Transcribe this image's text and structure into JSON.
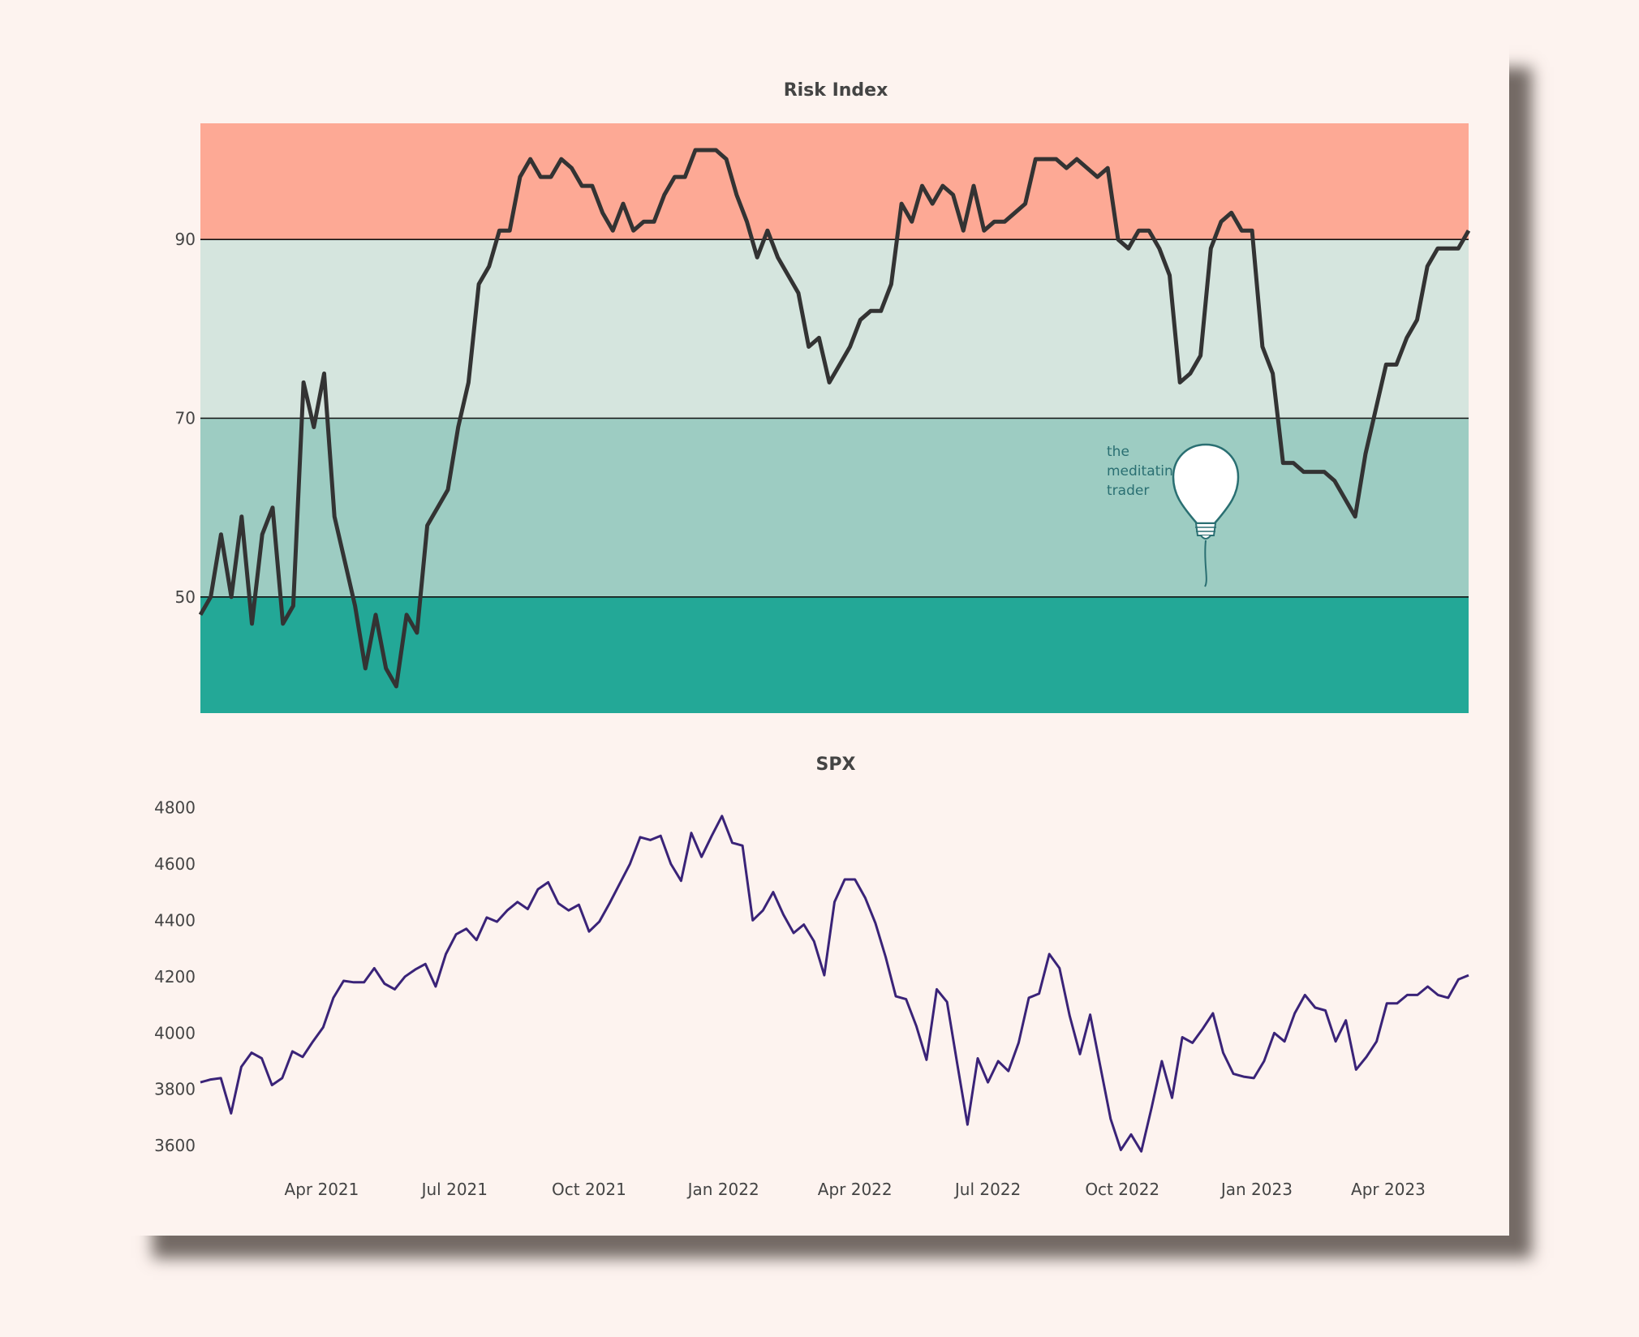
{
  "chart_data": [
    {
      "type": "line",
      "title": "Risk Index",
      "xlabel": "",
      "ylabel": "",
      "ylim": [
        37,
        103
      ],
      "yticks": [
        50,
        70,
        90
      ],
      "grid": false,
      "bands": [
        {
          "from": 90,
          "to": 103,
          "color": "#fda995"
        },
        {
          "from": 70,
          "to": 90,
          "color": "#d5e5de"
        },
        {
          "from": 50,
          "to": 70,
          "color": "#9dccc2"
        },
        {
          "from": 37,
          "to": 50,
          "color": "#23a897"
        }
      ],
      "line_color": "#333333",
      "series": [
        {
          "values": [
            48,
            50,
            57,
            50,
            59,
            47,
            57,
            60,
            47,
            49,
            74,
            69,
            75,
            59,
            54,
            49,
            42,
            48,
            42,
            40,
            48,
            46,
            58,
            60,
            62,
            69,
            74,
            85,
            87,
            91,
            91,
            97,
            99,
            97,
            97,
            99,
            98,
            96,
            96,
            93,
            91,
            94,
            91,
            92,
            92,
            95,
            97,
            97,
            100,
            100,
            100,
            99,
            95,
            92,
            88,
            91,
            88,
            86,
            84,
            78,
            79,
            74,
            76,
            78,
            81,
            82,
            82,
            85,
            94,
            92,
            96,
            94,
            96,
            95,
            91,
            96,
            91,
            92,
            92,
            93,
            94,
            99,
            99,
            99,
            98,
            99,
            98,
            97,
            98,
            90,
            89,
            91,
            91,
            89,
            86,
            74,
            75,
            77,
            89,
            92,
            93,
            91,
            91,
            78,
            75,
            65,
            65,
            64,
            64,
            64,
            63,
            61,
            59,
            66,
            71,
            76,
            76,
            79,
            81,
            87,
            89,
            89,
            89,
            91
          ]
        }
      ],
      "annotation": [
        "the",
        "meditating",
        "trader"
      ]
    },
    {
      "type": "line",
      "title": "SPX",
      "xlabel": "",
      "ylabel": "",
      "ylim": [
        3520,
        4830
      ],
      "yticks": [
        3600,
        3800,
        4000,
        4200,
        4400,
        4600,
        4800
      ],
      "grid": false,
      "line_color": "#3a2378",
      "x_start": "2021-01-08",
      "x_step": "1 week",
      "x_tick_labels": [
        "Apr 2021",
        "Jul 2021",
        "Oct 2021",
        "Jan 2022",
        "Apr 2022",
        "Jul 2022",
        "Oct 2022",
        "Jan 2023",
        "Apr 2023"
      ],
      "x_tick_dates": [
        "2021-04-01",
        "2021-07-01",
        "2021-10-01",
        "2022-01-01",
        "2022-04-01",
        "2022-07-01",
        "2022-10-01",
        "2023-01-01",
        "2023-04-01"
      ],
      "series": [
        {
          "values": [
            3825,
            3835,
            3840,
            3715,
            3880,
            3930,
            3910,
            3815,
            3840,
            3935,
            3915,
            3970,
            4020,
            4125,
            4185,
            4180,
            4180,
            4230,
            4175,
            4155,
            4200,
            4225,
            4245,
            4165,
            4280,
            4350,
            4370,
            4330,
            4410,
            4395,
            4435,
            4465,
            4440,
            4510,
            4535,
            4460,
            4435,
            4455,
            4360,
            4395,
            4460,
            4530,
            4600,
            4695,
            4685,
            4700,
            4600,
            4540,
            4710,
            4625,
            4700,
            4770,
            4675,
            4665,
            4400,
            4435,
            4500,
            4420,
            4355,
            4385,
            4325,
            4205,
            4465,
            4545,
            4545,
            4480,
            4390,
            4270,
            4130,
            4120,
            4025,
            3905,
            4155,
            4110,
            3890,
            3675,
            3910,
            3825,
            3900,
            3865,
            3965,
            4125,
            4140,
            4280,
            4230,
            4060,
            3925,
            4065,
            3880,
            3695,
            3585,
            3640,
            3580,
            3735,
            3900,
            3770,
            3985,
            3965,
            4015,
            4070,
            3930,
            3855,
            3845,
            3840,
            3900,
            4000,
            3970,
            4070,
            4135,
            4090,
            4080,
            3970,
            4045,
            3870,
            3915,
            3970,
            4105,
            4105,
            4135,
            4135,
            4165,
            4135,
            4125,
            4190,
            4205
          ]
        }
      ]
    }
  ]
}
